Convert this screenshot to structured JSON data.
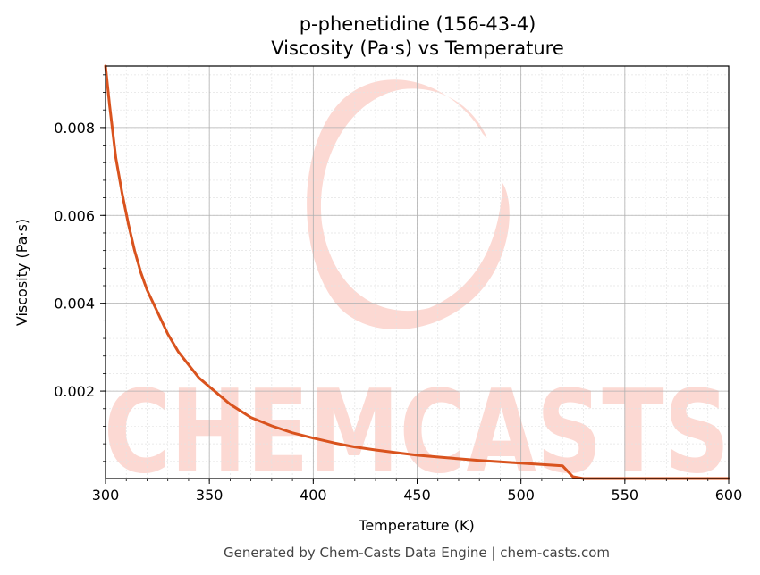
{
  "chart_data": {
    "type": "line",
    "title": "p-phenetidine (156-43-4)",
    "subtitle": "Viscosity (Pa·s) vs Temperature",
    "xlabel": "Temperature (K)",
    "ylabel": "Viscosity (Pa·s)",
    "xlim": [
      300,
      600
    ],
    "ylim": [
      1e-05,
      0.0094
    ],
    "xticks": [
      300,
      350,
      400,
      450,
      500,
      550,
      600
    ],
    "xtick_labels": [
      "300",
      "350",
      "400",
      "450",
      "500",
      "550",
      "600"
    ],
    "yticks": [
      0.002,
      0.004,
      0.006,
      0.008
    ],
    "ytick_labels": [
      "0.002",
      "0.004",
      "0.006",
      "0.008"
    ],
    "grid": true,
    "line_color": "#d9531e",
    "series": [
      {
        "x": [
          300,
          302,
          305,
          308,
          311,
          314,
          317,
          320,
          325,
          330,
          335,
          340,
          345,
          350,
          360,
          370,
          380,
          390,
          400,
          410,
          420,
          430,
          440,
          450,
          460,
          470,
          480,
          490,
          500,
          510,
          520,
          525,
          530,
          550,
          600
        ],
        "values": [
          0.0094,
          0.0085,
          0.0073,
          0.0065,
          0.0058,
          0.0052,
          0.0047,
          0.0043,
          0.0038,
          0.0033,
          0.0029,
          0.0026,
          0.0023,
          0.0021,
          0.0017,
          0.0014,
          0.00121,
          0.00105,
          0.00093,
          0.00082,
          0.00073,
          0.00066,
          0.0006,
          0.00054,
          0.0005,
          0.00046,
          0.00042,
          0.00039,
          0.00036,
          0.00033,
          0.0003,
          5e-05,
          1e-05,
          1e-05,
          1e-05
        ]
      }
    ]
  },
  "watermark": {
    "text": "CHEMCASTS",
    "color": "#fcd9d3"
  },
  "footer": "Generated by Chem-Casts Data Engine | chem-casts.com"
}
